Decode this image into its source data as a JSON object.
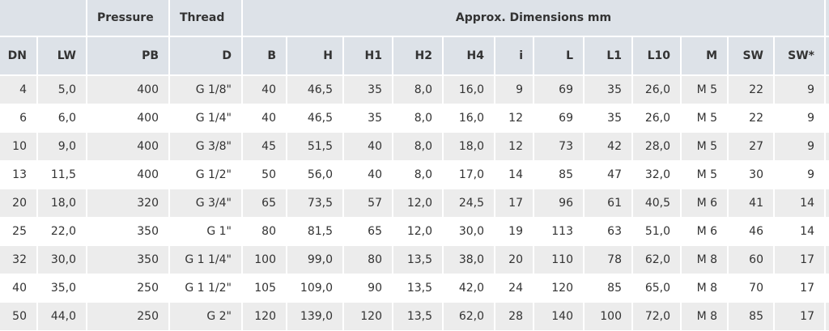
{
  "table": {
    "group_header": [
      "",
      "Pressure",
      "Thread",
      "Approx. Dimensions mm"
    ],
    "header": [
      "DN",
      "LW",
      "PB",
      "D",
      "B",
      "H",
      "H1",
      "H2",
      "H4",
      "i",
      "L",
      "L1",
      "L10",
      "M",
      "SW",
      "SW*"
    ],
    "rows": [
      [
        "4",
        "5,0",
        "400",
        "G 1/8\"",
        "40",
        "46,5",
        "35",
        "8,0",
        "16,0",
        "9",
        "69",
        "35",
        "26,0",
        "M 5",
        "22",
        "9"
      ],
      [
        "6",
        "6,0",
        "400",
        "G 1/4\"",
        "40",
        "46,5",
        "35",
        "8,0",
        "16,0",
        "12",
        "69",
        "35",
        "26,0",
        "M 5",
        "22",
        "9"
      ],
      [
        "10",
        "9,0",
        "400",
        "G 3/8\"",
        "45",
        "51,5",
        "40",
        "8,0",
        "18,0",
        "12",
        "73",
        "42",
        "28,0",
        "M 5",
        "27",
        "9"
      ],
      [
        "13",
        "11,5",
        "400",
        "G 1/2\"",
        "50",
        "56,0",
        "40",
        "8,0",
        "17,0",
        "14",
        "85",
        "47",
        "32,0",
        "M 5",
        "30",
        "9"
      ],
      [
        "20",
        "18,0",
        "320",
        "G 3/4\"",
        "65",
        "73,5",
        "57",
        "12,0",
        "24,5",
        "17",
        "96",
        "61",
        "40,5",
        "M 6",
        "41",
        "14"
      ],
      [
        "25",
        "22,0",
        "350",
        "G 1\"",
        "80",
        "81,5",
        "65",
        "12,0",
        "30,0",
        "19",
        "113",
        "63",
        "51,0",
        "M 6",
        "46",
        "14"
      ],
      [
        "32",
        "30,0",
        "350",
        "G 1 1/4\"",
        "100",
        "99,0",
        "80",
        "13,5",
        "38,0",
        "20",
        "110",
        "78",
        "62,0",
        "M 8",
        "60",
        "17"
      ],
      [
        "40",
        "35,0",
        "250",
        "G 1 1/2\"",
        "105",
        "109,0",
        "90",
        "13,5",
        "42,0",
        "24",
        "120",
        "85",
        "65,0",
        "M 8",
        "70",
        "17"
      ],
      [
        "50",
        "44,0",
        "250",
        "G 2\"",
        "120",
        "139,0",
        "120",
        "13,5",
        "62,0",
        "28",
        "140",
        "100",
        "72,0",
        "M 8",
        "85",
        "17"
      ]
    ]
  }
}
